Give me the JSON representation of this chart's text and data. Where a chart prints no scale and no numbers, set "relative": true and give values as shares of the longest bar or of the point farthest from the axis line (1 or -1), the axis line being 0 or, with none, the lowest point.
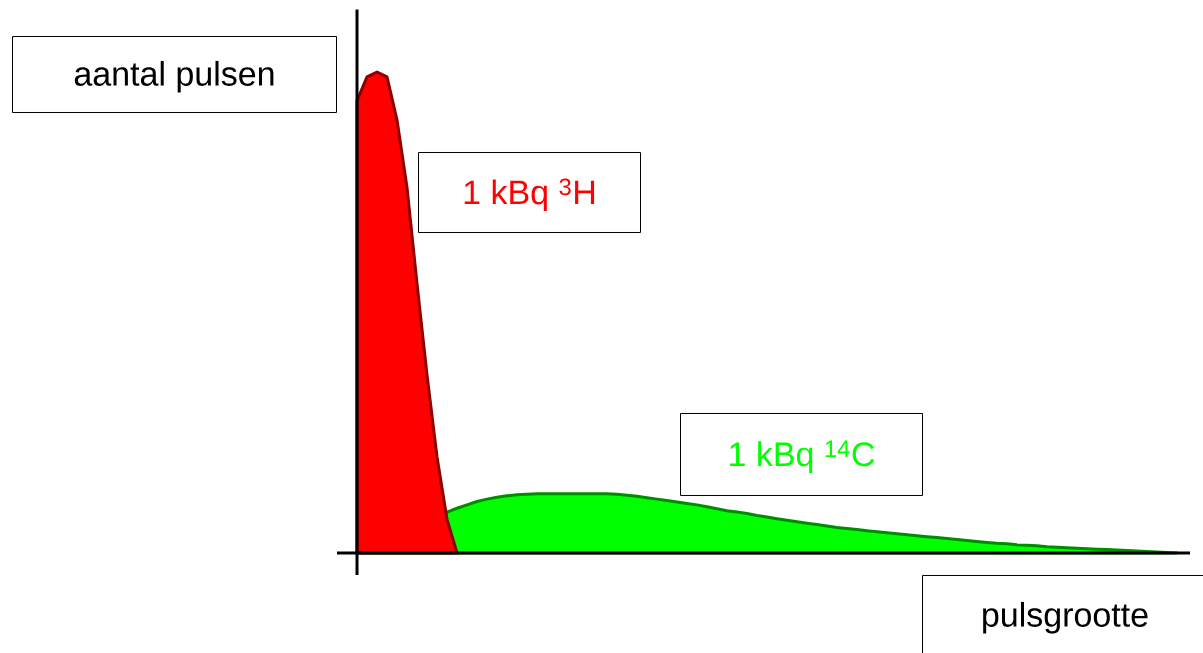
{
  "chart_data": {
    "type": "area",
    "relative": true,
    "xlabel": "pulsgrootte",
    "ylabel": "aantal pulsen",
    "categories": [
      null,
      null,
      null,
      null,
      null,
      null,
      null,
      null,
      null,
      null,
      null,
      null,
      null,
      null,
      null,
      null,
      null,
      null,
      null,
      null,
      null,
      null,
      null,
      null,
      null,
      null,
      null,
      null,
      null,
      null,
      null,
      null,
      null,
      null,
      null,
      null,
      null,
      null,
      null,
      null,
      null,
      null,
      null,
      null,
      null,
      null,
      null,
      null,
      null,
      null,
      null,
      null,
      null,
      null,
      null,
      null,
      null,
      null,
      null,
      null,
      null,
      null,
      null,
      null,
      null,
      null,
      null,
      null,
      null,
      null,
      null,
      null,
      null,
      null,
      null,
      null,
      null,
      null,
      null,
      null,
      null,
      null,
      null
    ],
    "series": [
      {
        "name": "1 kBq $^{14}$C",
        "color": "#00ff00",
        "values": [
          0.0,
          null,
          null,
          null,
          null,
          null,
          null,
          null,
          null,
          0.085,
          0.093,
          0.1,
          0.107,
          0.112,
          0.116,
          0.119,
          0.121,
          0.122,
          0.123,
          0.123,
          0.123,
          0.123,
          0.123,
          0.123,
          0.123,
          0.123,
          0.122,
          0.12,
          0.118,
          0.115,
          0.112,
          0.109,
          0.106,
          0.103,
          0.1,
          0.096,
          0.092,
          0.088,
          0.085,
          0.082,
          0.078,
          0.075,
          0.071,
          0.068,
          0.065,
          0.062,
          0.059,
          0.056,
          0.053,
          0.051,
          0.049,
          0.046,
          0.044,
          0.042,
          0.04,
          0.038,
          0.036,
          0.034,
          0.032,
          0.03,
          0.028,
          0.026,
          0.024,
          0.022,
          0.02,
          0.019,
          0.017,
          0.016,
          0.015,
          0.013,
          0.012,
          0.011,
          0.01,
          0.009,
          0.008,
          0.007,
          0.006,
          0.005,
          0.004,
          0.003,
          0.002,
          0.001,
          0.0
        ]
      },
      {
        "name": "1 kBq $^{3}$H",
        "color": "#ff0000",
        "values": [
          0.94,
          0.99,
          1.0,
          0.99,
          0.9,
          0.76,
          0.56,
          0.37,
          0.2,
          0.07,
          0.0,
          null,
          null,
          null,
          null,
          null,
          null,
          null,
          null,
          null,
          null,
          null,
          null,
          null,
          null,
          null,
          null,
          null,
          null,
          null,
          null,
          null,
          null,
          null,
          null,
          null,
          null,
          null,
          null,
          null,
          null,
          null,
          null,
          null,
          null,
          null,
          null,
          null,
          null,
          null,
          null,
          null,
          null,
          null,
          null,
          null,
          null,
          null,
          null,
          null,
          null,
          null,
          null,
          null,
          null,
          null,
          null,
          null,
          null,
          null,
          null,
          null,
          null,
          null,
          null,
          null,
          null,
          null,
          null,
          null,
          null,
          null,
          null
        ]
      }
    ]
  }
}
